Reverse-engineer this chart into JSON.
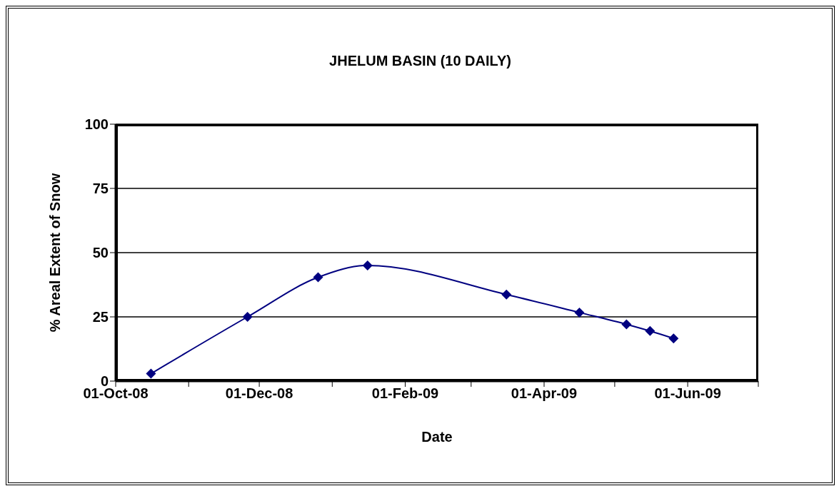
{
  "chart_data": {
    "type": "line",
    "title": "JHELUM BASIN (10 DAILY)",
    "xlabel": "Date",
    "ylabel": "% Areal Extent of Snow",
    "x": [
      "2008-10-16",
      "2008-11-26",
      "2008-12-26",
      "2009-01-16",
      "2009-03-16",
      "2009-04-16",
      "2009-05-06",
      "2009-05-16",
      "2009-05-26"
    ],
    "series": [
      {
        "color": "#000080",
        "values": [
          2.9,
          25,
          40.4,
          45,
          33.7,
          26.7,
          22.1,
          19.5,
          16.6
        ]
      }
    ],
    "xlim": [
      "2008-10-01",
      "2009-07-01"
    ],
    "xticks": [
      {
        "value": "2008-10-01",
        "label": "01-Oct-08"
      },
      {
        "value": "2008-11-01",
        "label": null
      },
      {
        "value": "2008-12-01",
        "label": "01-Dec-08"
      },
      {
        "value": "2009-01-01",
        "label": null
      },
      {
        "value": "2009-02-01",
        "label": "01-Feb-09"
      },
      {
        "value": "2009-03-01",
        "label": null
      },
      {
        "value": "2009-04-01",
        "label": "01-Apr-09"
      },
      {
        "value": "2009-05-01",
        "label": null
      },
      {
        "value": "2009-06-01",
        "label": "01-Jun-09"
      },
      {
        "value": "2009-07-01",
        "label": null
      }
    ],
    "ylim": [
      0,
      100
    ],
    "yticks": [
      0,
      25,
      50,
      75,
      100
    ],
    "grid": "y",
    "legend": false,
    "marker": "diamond",
    "line_style": "solid"
  }
}
